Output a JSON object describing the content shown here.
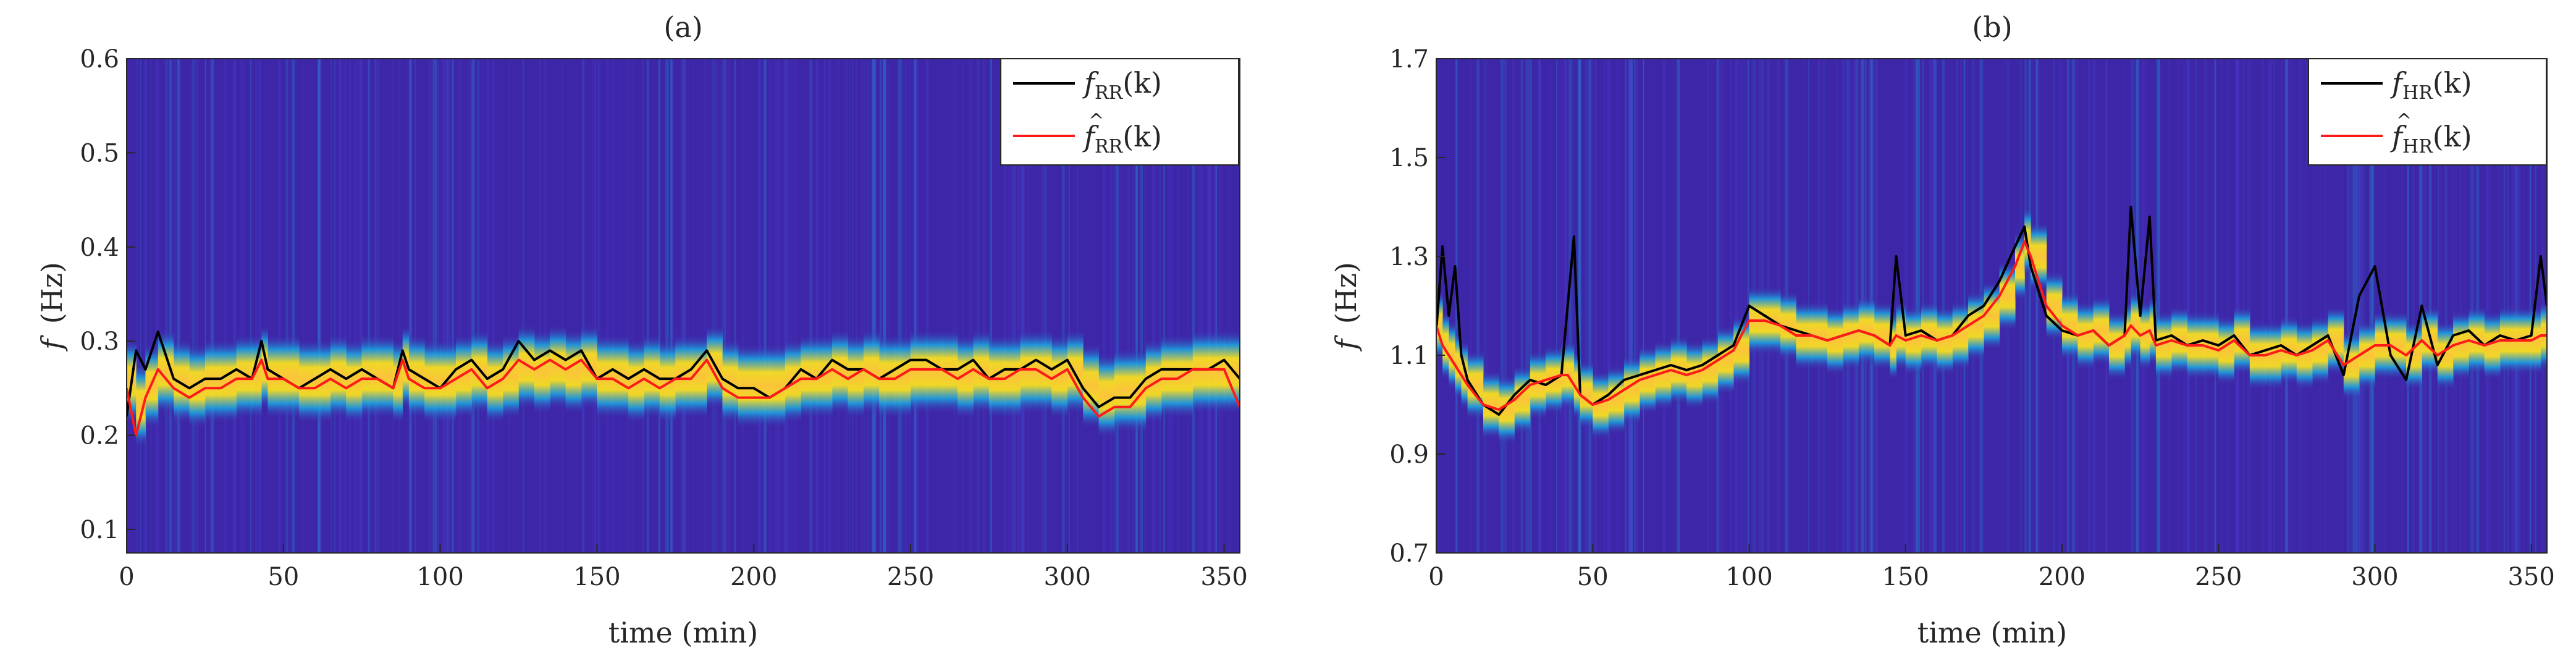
{
  "figure": {
    "panel_count": 2
  },
  "colors": {
    "background_low": "#3e26a8",
    "band_mid": "#1ba6e1",
    "band_high": "#f9e020",
    "band_peak": "#fbc43a",
    "true_line": "#000000",
    "estimate_line": "#ff1a1a"
  },
  "chart_data": [
    {
      "type": "line",
      "overlay": "spectrogram",
      "title": "(a)",
      "xlabel": "time (min)",
      "ylabel_symbol": "f",
      "ylabel_unit": "(Hz)",
      "xlim": [
        0,
        355
      ],
      "ylim": [
        0.075,
        0.6
      ],
      "xticks": [
        0,
        50,
        100,
        150,
        200,
        250,
        300,
        350
      ],
      "yticks": [
        0.1,
        0.2,
        0.3,
        0.4,
        0.5,
        0.6
      ],
      "ytick_labels": [
        "0.1",
        "0.2",
        "0.3",
        "0.4",
        "0.5",
        "0.6"
      ],
      "legend": {
        "position": "top-right",
        "entries": [
          {
            "base": "f",
            "hat": false,
            "sub": "RR",
            "arg": "(k)"
          },
          {
            "base": "f",
            "hat": true,
            "sub": "RR",
            "arg": "(k)"
          }
        ]
      },
      "band": {
        "mean": 0.265,
        "halfwidth": 0.045
      },
      "x": [
        0,
        3,
        6,
        10,
        15,
        20,
        25,
        30,
        35,
        40,
        43,
        45,
        50,
        55,
        60,
        65,
        70,
        75,
        80,
        85,
        88,
        90,
        95,
        100,
        105,
        110,
        115,
        120,
        125,
        130,
        135,
        140,
        145,
        150,
        155,
        160,
        165,
        170,
        175,
        180,
        185,
        190,
        195,
        200,
        205,
        210,
        215,
        220,
        225,
        230,
        235,
        240,
        245,
        250,
        255,
        260,
        265,
        270,
        275,
        280,
        285,
        290,
        295,
        300,
        305,
        310,
        315,
        320,
        325,
        330,
        335,
        340,
        345,
        350,
        355
      ],
      "series": [
        {
          "name": "f_RR(k)",
          "values": [
            0.22,
            0.29,
            0.27,
            0.31,
            0.26,
            0.25,
            0.26,
            0.26,
            0.27,
            0.26,
            0.3,
            0.27,
            0.26,
            0.25,
            0.26,
            0.27,
            0.26,
            0.27,
            0.26,
            0.25,
            0.29,
            0.27,
            0.26,
            0.25,
            0.27,
            0.28,
            0.26,
            0.27,
            0.3,
            0.28,
            0.29,
            0.28,
            0.29,
            0.26,
            0.27,
            0.26,
            0.27,
            0.26,
            0.26,
            0.27,
            0.29,
            0.26,
            0.25,
            0.25,
            0.24,
            0.25,
            0.27,
            0.26,
            0.28,
            0.27,
            0.27,
            0.26,
            0.27,
            0.28,
            0.28,
            0.27,
            0.27,
            0.28,
            0.26,
            0.27,
            0.27,
            0.28,
            0.27,
            0.28,
            0.25,
            0.23,
            0.24,
            0.24,
            0.26,
            0.27,
            0.27,
            0.27,
            0.27,
            0.28,
            0.26
          ]
        },
        {
          "name": "f̂_RR(k)",
          "values": [
            0.25,
            0.2,
            0.24,
            0.27,
            0.25,
            0.24,
            0.25,
            0.25,
            0.26,
            0.26,
            0.28,
            0.26,
            0.26,
            0.25,
            0.25,
            0.26,
            0.25,
            0.26,
            0.26,
            0.25,
            0.28,
            0.26,
            0.25,
            0.25,
            0.26,
            0.27,
            0.25,
            0.26,
            0.28,
            0.27,
            0.28,
            0.27,
            0.28,
            0.26,
            0.26,
            0.25,
            0.26,
            0.25,
            0.26,
            0.26,
            0.28,
            0.25,
            0.24,
            0.24,
            0.24,
            0.25,
            0.26,
            0.26,
            0.27,
            0.26,
            0.27,
            0.26,
            0.26,
            0.27,
            0.27,
            0.27,
            0.26,
            0.27,
            0.26,
            0.26,
            0.27,
            0.27,
            0.26,
            0.27,
            0.24,
            0.22,
            0.23,
            0.23,
            0.25,
            0.26,
            0.26,
            0.27,
            0.27,
            0.27,
            0.23
          ]
        }
      ]
    },
    {
      "type": "line",
      "overlay": "spectrogram",
      "title": "(b)",
      "xlabel": "time (min)",
      "ylabel_symbol": "f",
      "ylabel_unit": "(Hz)",
      "xlim": [
        0,
        355
      ],
      "ylim": [
        0.7,
        1.7
      ],
      "xticks": [
        0,
        50,
        100,
        150,
        200,
        250,
        300,
        350
      ],
      "yticks": [
        0.7,
        0.9,
        1.1,
        1.3,
        1.5,
        1.7
      ],
      "ytick_labels": [
        "0.7",
        "0.9",
        "1.1",
        "1.3",
        "1.5",
        "1.7"
      ],
      "legend": {
        "position": "top-right",
        "entries": [
          {
            "base": "f",
            "hat": false,
            "sub": "HR",
            "arg": "(k)"
          },
          {
            "base": "f",
            "hat": true,
            "sub": "HR",
            "arg": "(k)"
          }
        ]
      },
      "band": {
        "mean": null,
        "halfwidth": 0.07
      },
      "x": [
        0,
        2,
        4,
        6,
        8,
        10,
        15,
        20,
        25,
        30,
        35,
        40,
        42,
        44,
        46,
        50,
        55,
        60,
        65,
        70,
        75,
        80,
        85,
        90,
        95,
        100,
        105,
        110,
        115,
        120,
        125,
        130,
        135,
        140,
        145,
        147,
        150,
        155,
        160,
        165,
        170,
        175,
        180,
        185,
        188,
        190,
        195,
        200,
        205,
        210,
        215,
        220,
        222,
        225,
        228,
        230,
        235,
        240,
        245,
        250,
        255,
        260,
        265,
        270,
        275,
        280,
        285,
        290,
        295,
        300,
        305,
        310,
        315,
        320,
        325,
        330,
        335,
        340,
        345,
        350,
        353,
        355
      ],
      "series": [
        {
          "name": "f_HR(k)",
          "values": [
            1.15,
            1.32,
            1.18,
            1.28,
            1.1,
            1.05,
            1.0,
            0.98,
            1.02,
            1.05,
            1.04,
            1.06,
            1.2,
            1.34,
            1.02,
            1.0,
            1.02,
            1.05,
            1.06,
            1.07,
            1.08,
            1.07,
            1.08,
            1.1,
            1.12,
            1.2,
            1.18,
            1.16,
            1.15,
            1.14,
            1.13,
            1.14,
            1.15,
            1.14,
            1.12,
            1.3,
            1.14,
            1.15,
            1.13,
            1.14,
            1.18,
            1.2,
            1.25,
            1.32,
            1.36,
            1.28,
            1.18,
            1.15,
            1.14,
            1.15,
            1.12,
            1.14,
            1.4,
            1.18,
            1.38,
            1.13,
            1.14,
            1.12,
            1.13,
            1.12,
            1.14,
            1.1,
            1.11,
            1.12,
            1.1,
            1.12,
            1.14,
            1.06,
            1.22,
            1.28,
            1.1,
            1.05,
            1.2,
            1.08,
            1.14,
            1.15,
            1.12,
            1.14,
            1.13,
            1.14,
            1.3,
            1.2
          ]
        },
        {
          "name": "f̂_HR(k)",
          "values": [
            1.16,
            1.12,
            1.1,
            1.08,
            1.06,
            1.04,
            1.0,
            0.99,
            1.01,
            1.04,
            1.05,
            1.06,
            1.06,
            1.04,
            1.02,
            1.0,
            1.01,
            1.03,
            1.05,
            1.06,
            1.07,
            1.06,
            1.07,
            1.09,
            1.11,
            1.17,
            1.17,
            1.16,
            1.14,
            1.14,
            1.13,
            1.14,
            1.15,
            1.14,
            1.12,
            1.14,
            1.13,
            1.14,
            1.13,
            1.14,
            1.16,
            1.18,
            1.22,
            1.28,
            1.33,
            1.3,
            1.2,
            1.16,
            1.14,
            1.15,
            1.12,
            1.14,
            1.16,
            1.14,
            1.15,
            1.12,
            1.13,
            1.12,
            1.12,
            1.11,
            1.13,
            1.1,
            1.1,
            1.11,
            1.1,
            1.11,
            1.13,
            1.08,
            1.1,
            1.12,
            1.12,
            1.1,
            1.13,
            1.1,
            1.12,
            1.13,
            1.12,
            1.13,
            1.13,
            1.13,
            1.14,
            1.14
          ]
        }
      ]
    }
  ]
}
